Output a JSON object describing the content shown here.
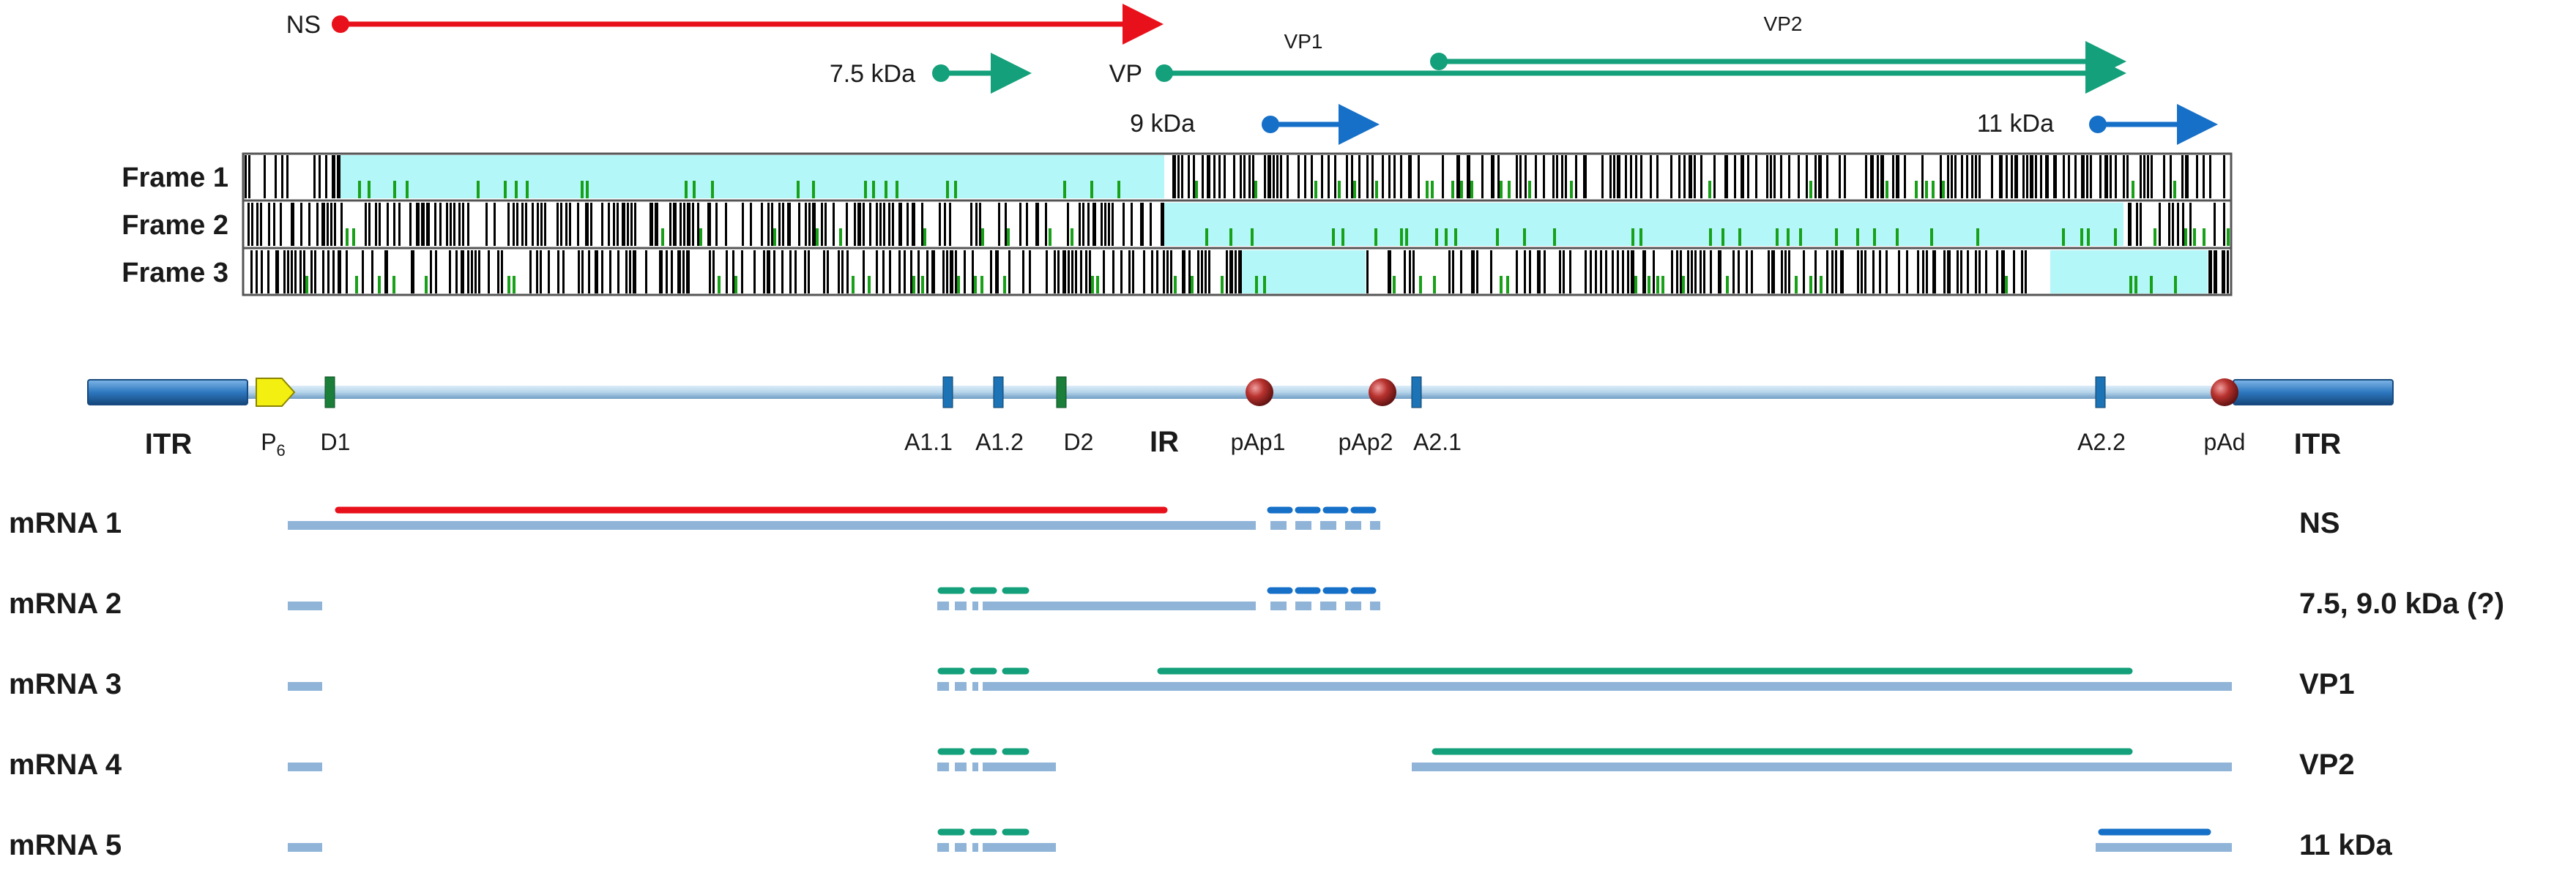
{
  "orf_labels": {
    "ns": "NS",
    "p7_5": "7.5 kDa",
    "vp": "VP",
    "vp1": "VP1",
    "vp2": "VP2",
    "p9": "9 kDa",
    "p11": "11 kDa"
  },
  "frames": [
    "Frame 1",
    "Frame 2",
    "Frame 3"
  ],
  "genome_labels": {
    "itr_left": "ITR",
    "p6_main": "P",
    "p6_sub": "6",
    "d1": "D1",
    "a1_1": "A1.1",
    "a1_2": "A1.2",
    "d2": "D2",
    "ir": "IR",
    "pap1": "pAp1",
    "pap2": "pAp2",
    "a2_1": "A2.1",
    "a2_2": "A2.2",
    "pad": "pAd",
    "itr_right": "ITR"
  },
  "mrnas": [
    {
      "name": "mRNA 1",
      "product": "NS"
    },
    {
      "name": "mRNA 2",
      "product": "7.5, 9.0 kDa (?)"
    },
    {
      "name": "mRNA 3",
      "product": "VP1"
    },
    {
      "name": "mRNA 4",
      "product": "VP2"
    },
    {
      "name": "mRNA 5",
      "product": "11 kDa"
    }
  ],
  "colors": {
    "ns": "#e8101a",
    "vp": "#13a07a",
    "small": "#1670c8",
    "transcript": "#8fb4d8",
    "orf_fill": "#b3f7f8",
    "stop_codon": "#000000",
    "start_codon": "#18a018",
    "itr": "#2e78c0",
    "promoter": "#f3ef10",
    "polya": "#b8322e",
    "backbone": "#b5d4ea"
  }
}
